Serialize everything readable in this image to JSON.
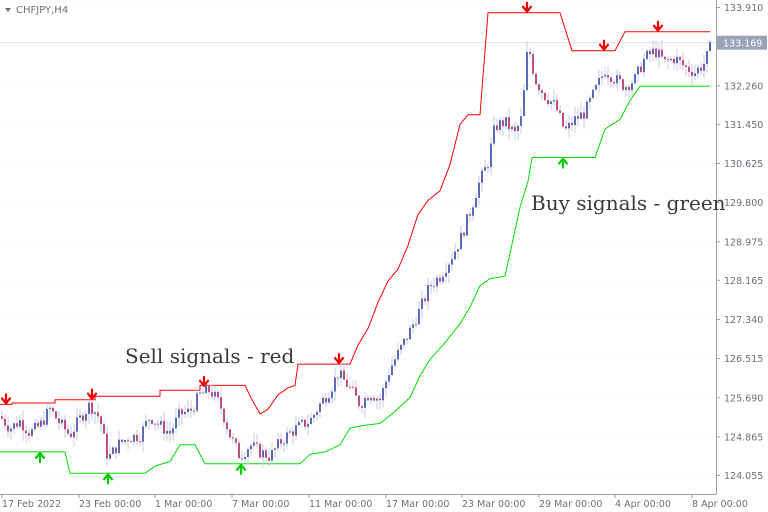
{
  "window": {
    "symbol_label": "CHFJPY,H4"
  },
  "colors": {
    "bull_candle": "#5b6ab8",
    "bear_candle": "#c04c7e",
    "wick": "#c7cde3",
    "upper_band": "#ff0000",
    "lower_band": "#00dd00",
    "sell_arrow": "#ee0000",
    "buy_arrow": "#00cc00",
    "price_tag_bg": "#9aa3b7",
    "grid": "#e4e4e4",
    "axis": "#9a9fa8",
    "text": "#6b6f78"
  },
  "chart_data": {
    "type": "candlestick",
    "title": "CHFJPY,H4",
    "yticks": [
      "133.910",
      "132.260",
      "131.450",
      "130.625",
      "129.800",
      "128.975",
      "128.165",
      "127.340",
      "126.515",
      "125.690",
      "124.865",
      "124.055"
    ],
    "xticks": [
      "17 Feb 2022",
      "23 Feb 00:00",
      "1 Mar 00:00",
      "7 Mar 00:00",
      "11 Mar 00:00",
      "17 Mar 00:00",
      "23 Mar 00:00",
      "29 Mar 00:00",
      "4 Apr 00:00",
      "8 Apr 00:00"
    ],
    "current_price": "133.169",
    "ylim": [
      124.0,
      133.91
    ],
    "annotations": [
      "Sell signals - red",
      "Buy signals - green"
    ],
    "close_path": [
      [
        0,
        125.3
      ],
      [
        10,
        125.05
      ],
      [
        20,
        125.2
      ],
      [
        30,
        124.95
      ],
      [
        40,
        125.1
      ],
      [
        50,
        125.45
      ],
      [
        60,
        125.15
      ],
      [
        70,
        124.9
      ],
      [
        80,
        125.25
      ],
      [
        90,
        125.55
      ],
      [
        100,
        125.25
      ],
      [
        108,
        124.4
      ],
      [
        118,
        124.7
      ],
      [
        128,
        124.85
      ],
      [
        140,
        124.9
      ],
      [
        150,
        125.3
      ],
      [
        160,
        125.1
      ],
      [
        170,
        124.95
      ],
      [
        180,
        125.35
      ],
      [
        190,
        125.4
      ],
      [
        200,
        125.75
      ],
      [
        210,
        125.85
      ],
      [
        220,
        125.55
      ],
      [
        230,
        124.9
      ],
      [
        240,
        124.45
      ],
      [
        250,
        124.7
      ],
      [
        260,
        124.55
      ],
      [
        270,
        124.45
      ],
      [
        280,
        124.75
      ],
      [
        290,
        124.95
      ],
      [
        300,
        125.1
      ],
      [
        310,
        125.2
      ],
      [
        320,
        125.55
      ],
      [
        330,
        125.85
      ],
      [
        338,
        126.2
      ],
      [
        348,
        125.95
      ],
      [
        360,
        125.55
      ],
      [
        370,
        125.8
      ],
      [
        380,
        125.65
      ],
      [
        390,
        126.3
      ],
      [
        400,
        126.7
      ],
      [
        410,
        127.1
      ],
      [
        420,
        127.55
      ],
      [
        430,
        128.05
      ],
      [
        440,
        128.25
      ],
      [
        450,
        128.6
      ],
      [
        460,
        129.0
      ],
      [
        470,
        129.6
      ],
      [
        478,
        130.15
      ],
      [
        488,
        130.65
      ],
      [
        495,
        131.4
      ],
      [
        505,
        131.5
      ],
      [
        515,
        131.25
      ],
      [
        522,
        131.6
      ],
      [
        528,
        133.15
      ],
      [
        535,
        132.4
      ],
      [
        545,
        132.05
      ],
      [
        555,
        131.85
      ],
      [
        565,
        131.3
      ],
      [
        575,
        131.55
      ],
      [
        585,
        131.7
      ],
      [
        595,
        132.15
      ],
      [
        605,
        132.6
      ],
      [
        615,
        132.4
      ],
      [
        625,
        132.25
      ],
      [
        635,
        132.4
      ],
      [
        645,
        132.85
      ],
      [
        655,
        133.0
      ],
      [
        665,
        132.75
      ],
      [
        675,
        132.85
      ],
      [
        685,
        132.65
      ],
      [
        695,
        132.55
      ],
      [
        705,
        132.75
      ],
      [
        712,
        133.17
      ]
    ],
    "upper_band": [
      [
        0,
        125.55
      ],
      [
        12,
        125.55
      ],
      [
        12,
        125.58
      ],
      [
        55,
        125.58
      ],
      [
        55,
        125.65
      ],
      [
        95,
        125.65
      ],
      [
        95,
        125.72
      ],
      [
        160,
        125.72
      ],
      [
        160,
        125.85
      ],
      [
        200,
        125.85
      ],
      [
        200,
        125.95
      ],
      [
        245,
        125.95
      ],
      [
        252,
        125.65
      ],
      [
        260,
        125.35
      ],
      [
        268,
        125.45
      ],
      [
        278,
        125.75
      ],
      [
        288,
        125.9
      ],
      [
        295,
        125.95
      ],
      [
        298,
        126.4
      ],
      [
        335,
        126.4
      ],
      [
        350,
        126.4
      ],
      [
        358,
        126.8
      ],
      [
        368,
        127.15
      ],
      [
        378,
        127.7
      ],
      [
        388,
        128.15
      ],
      [
        398,
        128.4
      ],
      [
        408,
        128.9
      ],
      [
        418,
        129.55
      ],
      [
        428,
        129.85
      ],
      [
        440,
        130.05
      ],
      [
        450,
        130.6
      ],
      [
        460,
        131.45
      ],
      [
        468,
        131.65
      ],
      [
        480,
        131.65
      ],
      [
        488,
        133.8
      ],
      [
        560,
        133.8
      ],
      [
        572,
        133.0
      ],
      [
        615,
        133.0
      ],
      [
        625,
        133.4
      ],
      [
        710,
        133.4
      ]
    ],
    "lower_band": [
      [
        0,
        124.55
      ],
      [
        65,
        124.55
      ],
      [
        70,
        124.1
      ],
      [
        145,
        124.1
      ],
      [
        155,
        124.25
      ],
      [
        170,
        124.35
      ],
      [
        180,
        124.7
      ],
      [
        195,
        124.7
      ],
      [
        205,
        124.3
      ],
      [
        270,
        124.3
      ],
      [
        300,
        124.3
      ],
      [
        310,
        124.5
      ],
      [
        325,
        124.55
      ],
      [
        340,
        124.7
      ],
      [
        350,
        125.05
      ],
      [
        362,
        125.1
      ],
      [
        380,
        125.15
      ],
      [
        395,
        125.4
      ],
      [
        410,
        125.7
      ],
      [
        420,
        126.15
      ],
      [
        430,
        126.5
      ],
      [
        445,
        126.85
      ],
      [
        460,
        127.25
      ],
      [
        470,
        127.6
      ],
      [
        480,
        128.05
      ],
      [
        490,
        128.2
      ],
      [
        505,
        128.25
      ],
      [
        520,
        129.7
      ],
      [
        528,
        130.25
      ],
      [
        532,
        130.75
      ],
      [
        595,
        130.75
      ],
      [
        605,
        131.35
      ],
      [
        620,
        131.55
      ],
      [
        630,
        131.95
      ],
      [
        640,
        132.25
      ],
      [
        710,
        132.25
      ]
    ],
    "sell_signals": [
      [
        6,
        125.55
      ],
      [
        92,
        125.65
      ],
      [
        204,
        125.92
      ],
      [
        339,
        126.4
      ],
      [
        527,
        133.8
      ],
      [
        604,
        133.0
      ],
      [
        658,
        133.4
      ]
    ],
    "buy_signals": [
      [
        40,
        124.55
      ],
      [
        108,
        124.1
      ],
      [
        241,
        124.3
      ],
      [
        563,
        130.75
      ]
    ]
  }
}
